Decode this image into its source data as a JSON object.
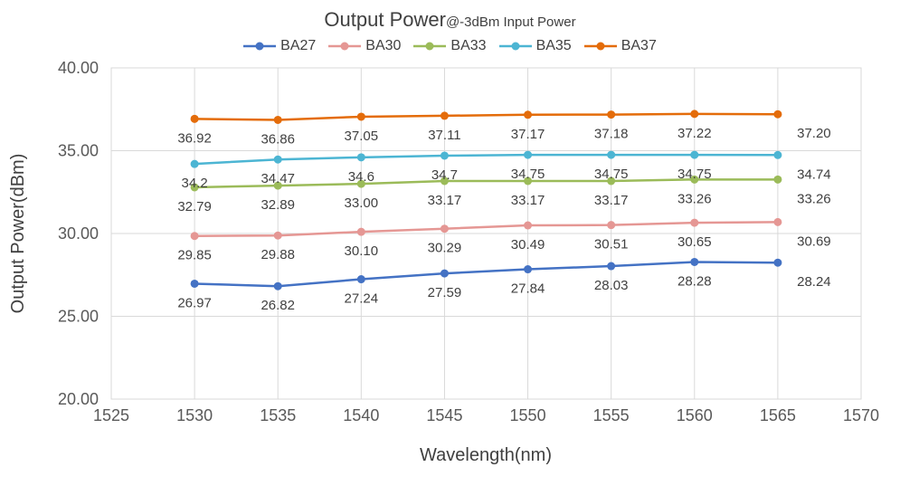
{
  "chart_data": {
    "type": "line",
    "title": "Output Power",
    "subtitle": "@-3dBm Input Power",
    "xlabel": "Wavelength(nm)",
    "ylabel": "Output Power(dBm)",
    "xlim": [
      1525,
      1570
    ],
    "ylim": [
      20,
      40
    ],
    "grid": "both",
    "legend_position": "top",
    "x_ticks": [
      {
        "value": 1525,
        "label": "1525"
      },
      {
        "value": 1530,
        "label": "1530"
      },
      {
        "value": 1535,
        "label": "1535"
      },
      {
        "value": 1540,
        "label": "1540"
      },
      {
        "value": 1545,
        "label": "1545"
      },
      {
        "value": 1550,
        "label": "1550"
      },
      {
        "value": 1555,
        "label": "1555"
      },
      {
        "value": 1560,
        "label": "1560"
      },
      {
        "value": 1565,
        "label": "1565"
      },
      {
        "value": 1570,
        "label": "1570"
      }
    ],
    "y_ticks": [
      {
        "value": 40,
        "label": "40.00"
      },
      {
        "value": 35,
        "label": "35.00"
      },
      {
        "value": 30,
        "label": "30.00"
      },
      {
        "value": 25,
        "label": "25.00"
      },
      {
        "value": 20,
        "label": "20.00"
      }
    ],
    "x": [
      1530,
      1535,
      1540,
      1545,
      1550,
      1555,
      1560,
      1565
    ],
    "series": [
      {
        "name": "BA27",
        "color": "#4472C4",
        "values": [
          "26.97",
          "26.82",
          "27.24",
          "27.59",
          "27.84",
          "28.03",
          "28.28",
          "28.24"
        ]
      },
      {
        "name": "BA30",
        "color": "#E59794",
        "values": [
          "29.85",
          "29.88",
          "30.10",
          "30.29",
          "30.49",
          "30.51",
          "30.65",
          "30.69"
        ]
      },
      {
        "name": "BA33",
        "color": "#9BBB59",
        "values": [
          "32.79",
          "32.89",
          "33.00",
          "33.17",
          "33.17",
          "33.17",
          "33.26",
          "33.26"
        ]
      },
      {
        "name": "BA35",
        "color": "#4CB5D3",
        "values": [
          "34.2",
          "34.47",
          "34.6",
          "34.7",
          "34.75",
          "34.75",
          "34.75",
          "34.74"
        ]
      },
      {
        "name": "BA37",
        "color": "#E46C0A",
        "values": [
          "36.92",
          "36.86",
          "37.05",
          "37.11",
          "37.17",
          "37.18",
          "37.22",
          "37.20"
        ]
      }
    ],
    "style": {
      "grid_color": "#D9D9D9",
      "border_color": "#D9D9D9",
      "title_color": "#404040",
      "tick_color": "#595959",
      "data_label_color": "#404040"
    }
  }
}
